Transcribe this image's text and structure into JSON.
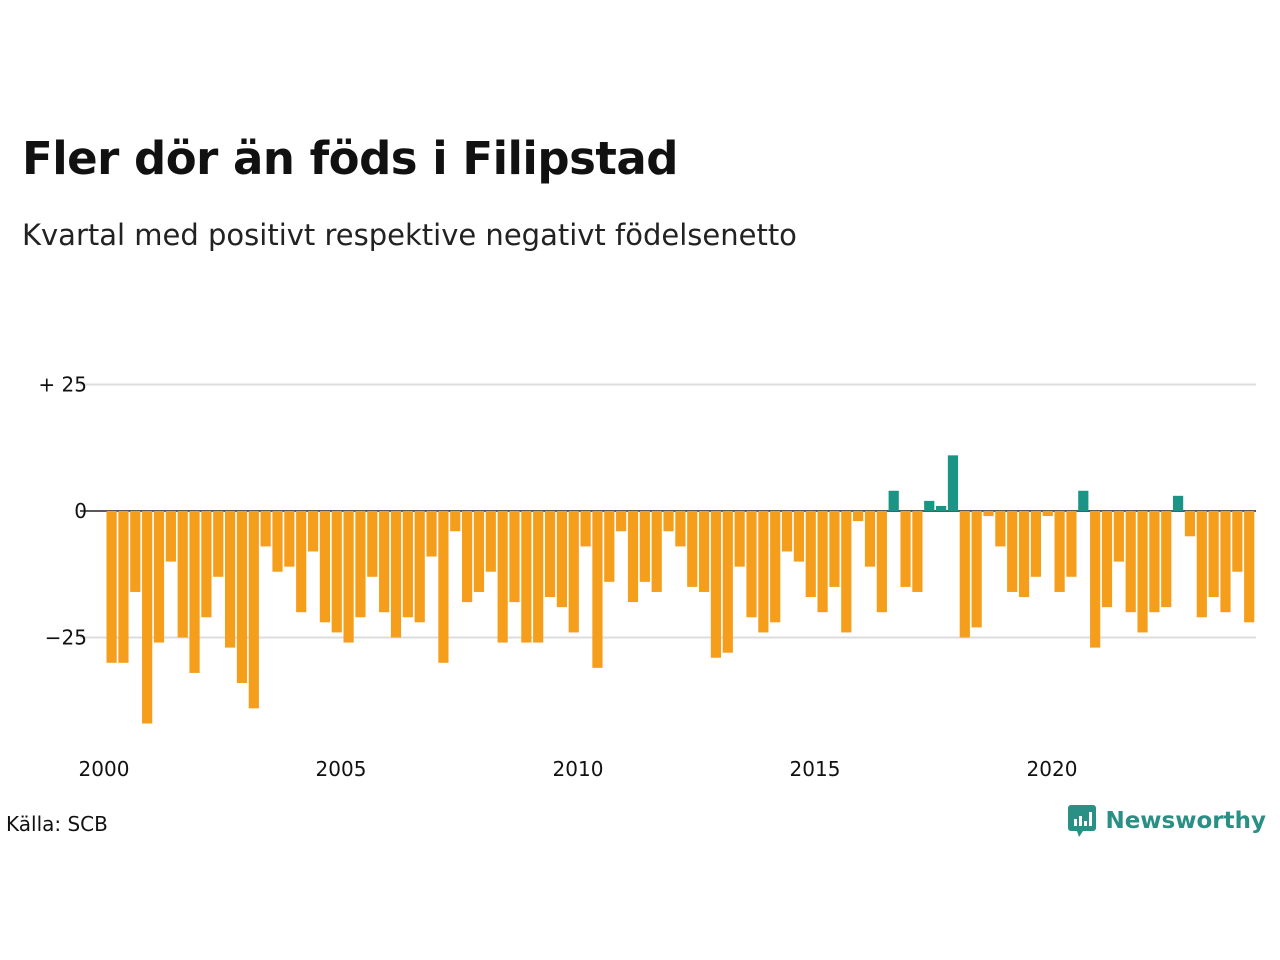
{
  "title": "Fler dör än föds i Filipstad",
  "subtitle": "Kvartal med positivt respektive negativt födelsenetto",
  "source": "Källa: SCB",
  "brand": "Newsworthy",
  "colors": {
    "positive": "#1a9485",
    "negative": "#f59e1c",
    "grid": "#dddddd",
    "zero": "#222222"
  },
  "chart_data": {
    "type": "bar",
    "title": "Fler dör än föds i Filipstad",
    "subtitle": "Kvartal med positivt respektive negativt födelsenetto",
    "x_tick_labels": [
      "2000",
      "2005",
      "2010",
      "2015",
      "2020"
    ],
    "y_tick_labels": [
      "+ 25",
      "0",
      "−25"
    ],
    "y_ticks": [
      25,
      0,
      -25
    ],
    "ylim": [
      -42,
      30
    ],
    "grid": true,
    "start": "2000 Q1",
    "values": [
      -30,
      -30,
      -16,
      -42,
      -26,
      -10,
      -25,
      -32,
      -21,
      -13,
      -27,
      -34,
      -39,
      -7,
      -12,
      -11,
      -20,
      -8,
      -22,
      -24,
      -26,
      -21,
      -13,
      -20,
      -25,
      -21,
      -22,
      -9,
      -30,
      -4,
      -18,
      -16,
      -12,
      -26,
      -18,
      -26,
      -26,
      -17,
      -19,
      -24,
      -7,
      -31,
      -14,
      -4,
      -18,
      -14,
      -16,
      -4,
      -7,
      -15,
      -16,
      -29,
      -28,
      -11,
      -21,
      -24,
      -22,
      -8,
      -10,
      -17,
      -20,
      -15,
      -24,
      -2,
      -11,
      -20,
      4,
      -15,
      -16,
      2,
      1,
      11,
      -25,
      -23,
      -1,
      -7,
      -16,
      -17,
      -13,
      -1,
      -16,
      -13,
      4,
      -27,
      -19,
      -10,
      -20,
      -24,
      -20,
      -19,
      3,
      -5,
      -21,
      -17,
      -20,
      -12,
      -22
    ]
  }
}
